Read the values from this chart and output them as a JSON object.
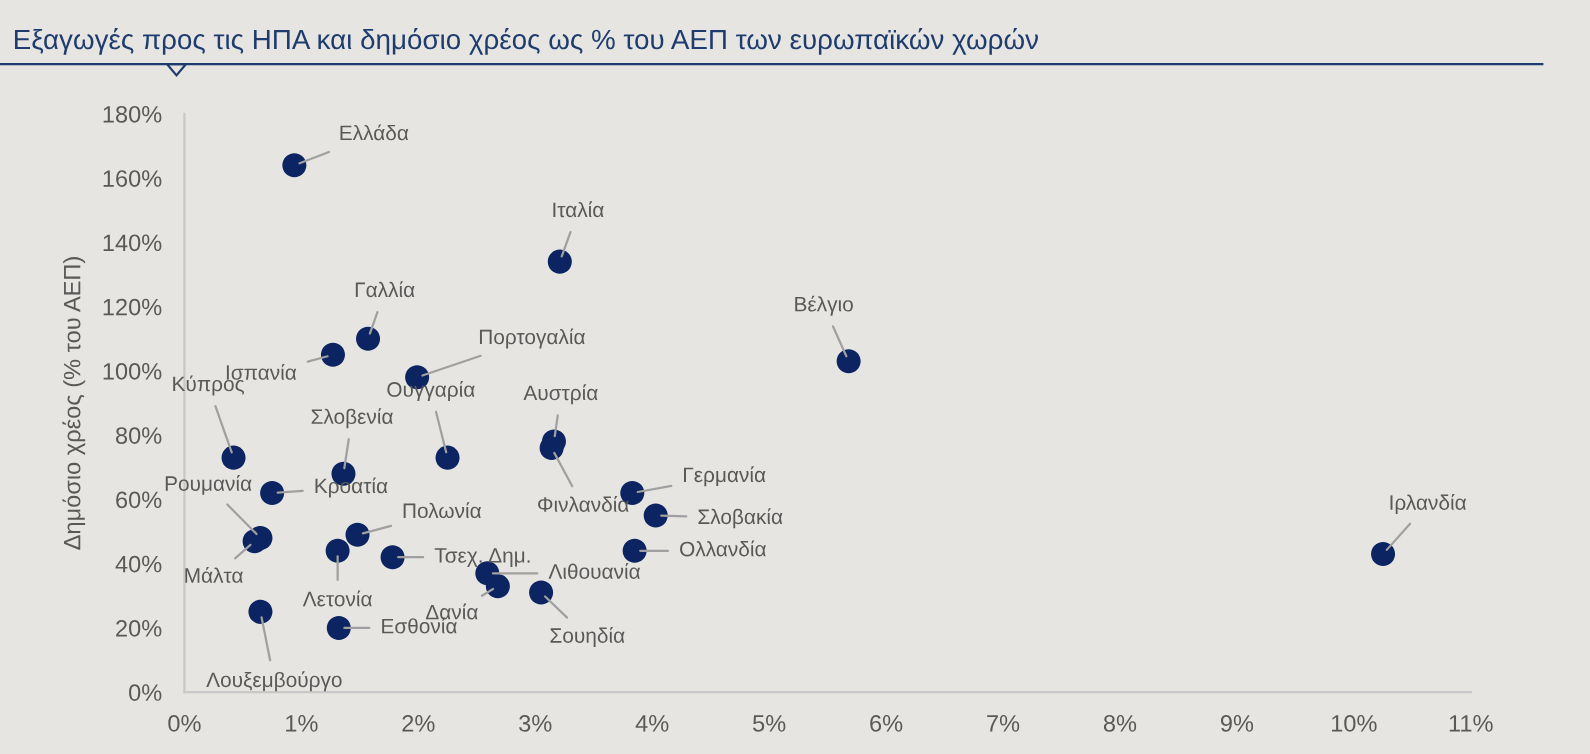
{
  "chart_data": {
    "type": "scatter",
    "title": "Εξαγωγές προς τις ΗΠΑ και δημόσιο χρέος ως % του ΑΕΠ των ευρωπαϊκών χωρών",
    "ylabel": "Δημόσιο χρέος (% του ΑΕΠ)",
    "series": [
      {
        "color": "#0c2461",
        "x": [
          0.94,
          3.21,
          1.57,
          1.27,
          1.99,
          0.42,
          2.25,
          1.36,
          0.75,
          0.65,
          0.6,
          3.16,
          3.14,
          1.48,
          1.31,
          1.78,
          2.59,
          2.68,
          3.05,
          3.83,
          4.03,
          3.85,
          0.65,
          1.32,
          5.68,
          10.25
        ],
        "values": [
          164,
          134,
          110,
          105,
          98,
          73,
          73,
          68,
          62,
          48,
          47,
          78,
          76,
          49,
          44,
          42,
          37,
          33,
          31,
          62,
          55,
          44,
          25,
          20,
          103,
          43
        ]
      }
    ],
    "annotations": [
      {
        "text": "Ελλάδα",
        "x": 0.94,
        "y": 164
      },
      {
        "text": "Ιταλία",
        "x": 3.21,
        "y": 134
      },
      {
        "text": "Γαλλία",
        "x": 1.57,
        "y": 110
      },
      {
        "text": "Ισπανία",
        "x": 1.27,
        "y": 105
      },
      {
        "text": "Πορτογαλία",
        "x": 1.99,
        "y": 98
      },
      {
        "text": "Κύπρος",
        "x": 0.42,
        "y": 73
      },
      {
        "text": "Ουγγαρία",
        "x": 2.25,
        "y": 73
      },
      {
        "text": "Σλοβενία",
        "x": 1.36,
        "y": 68
      },
      {
        "text": "Κροατία",
        "x": 0.75,
        "y": 62
      },
      {
        "text": "Ρουμανία",
        "x": 0.65,
        "y": 48
      },
      {
        "text": "Μάλτα",
        "x": 0.6,
        "y": 47
      },
      {
        "text": "Αυστρία",
        "x": 3.16,
        "y": 78
      },
      {
        "text": "Φινλανδία",
        "x": 3.14,
        "y": 76
      },
      {
        "text": "Πολωνία",
        "x": 1.48,
        "y": 49
      },
      {
        "text": "Λετονία",
        "x": 1.31,
        "y": 44
      },
      {
        "text": "Τσεχ. Δημ.",
        "x": 1.78,
        "y": 42
      },
      {
        "text": "Λιθουανία",
        "x": 2.59,
        "y": 37
      },
      {
        "text": "Δανία",
        "x": 2.68,
        "y": 33
      },
      {
        "text": "Σουηδία",
        "x": 3.05,
        "y": 31
      },
      {
        "text": "Γερμανία",
        "x": 3.83,
        "y": 62
      },
      {
        "text": "Σλοβακία",
        "x": 4.03,
        "y": 55
      },
      {
        "text": "Ολλανδία",
        "x": 3.85,
        "y": 44
      },
      {
        "text": "Λουξεμβούργο",
        "x": 0.65,
        "y": 25
      },
      {
        "text": "Εσθονία",
        "x": 1.32,
        "y": 20
      },
      {
        "text": "Βέλγιο",
        "x": 5.68,
        "y": 103
      },
      {
        "text": "Ιρλανδία",
        "x": 10.25,
        "y": 43
      }
    ],
    "xlim": [
      0,
      11
    ],
    "ylim": [
      0,
      180
    ],
    "xticks": [
      {
        "value": 0,
        "label": "0%"
      },
      {
        "value": 1,
        "label": "1%"
      },
      {
        "value": 2,
        "label": "2%"
      },
      {
        "value": 3,
        "label": "3%"
      },
      {
        "value": 4,
        "label": "4%"
      },
      {
        "value": 5,
        "label": "5%"
      },
      {
        "value": 6,
        "label": "6%"
      },
      {
        "value": 7,
        "label": "7%"
      },
      {
        "value": 8,
        "label": "8%"
      },
      {
        "value": 9,
        "label": "9%"
      },
      {
        "value": 10,
        "label": "10%"
      },
      {
        "value": 11,
        "label": "11%"
      }
    ],
    "yticks": [
      {
        "value": 0,
        "label": "0%"
      },
      {
        "value": 20,
        "label": "20%"
      },
      {
        "value": 40,
        "label": "40%"
      },
      {
        "value": 60,
        "label": "60%"
      },
      {
        "value": 80,
        "label": "80%"
      },
      {
        "value": 100,
        "label": "100%"
      },
      {
        "value": 120,
        "label": "120%"
      },
      {
        "value": 140,
        "label": "140%"
      },
      {
        "value": 160,
        "label": "160%"
      },
      {
        "value": 180,
        "label": "180%"
      }
    ],
    "grid": false,
    "legend": false,
    "marker": "circle"
  }
}
